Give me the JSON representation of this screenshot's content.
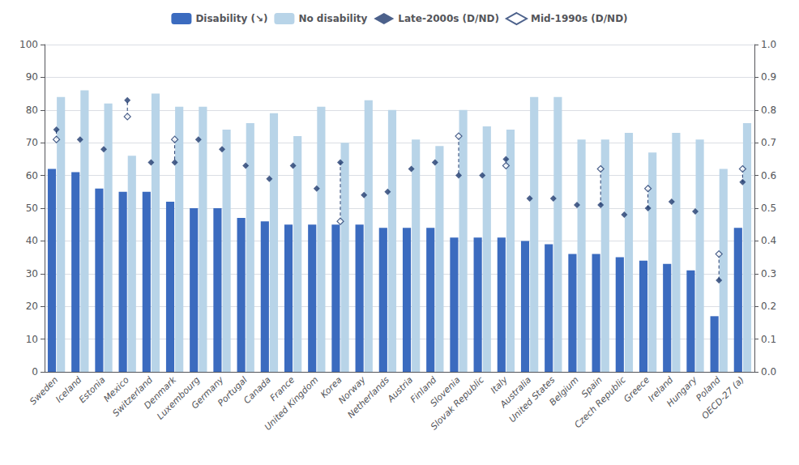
{
  "chart_data": {
    "type": "bar",
    "categories": [
      "Sweden",
      "Iceland",
      "Estonia",
      "Mexico",
      "Switzerland",
      "Denmark",
      "Luxembourg",
      "Germany",
      "Portugal",
      "Canada",
      "France",
      "United Kingdom",
      "Korea",
      "Norway",
      "Netherlands",
      "Austria",
      "Finland",
      "Slovenia",
      "Slovak Republic",
      "Italy",
      "Australia",
      "United States",
      "Belgium",
      "Spain",
      "Czech Republic",
      "Greece",
      "Ireland",
      "Hungary",
      "Poland",
      "OECD-27 (a)"
    ],
    "series": [
      {
        "name": "Disability (↘)",
        "type": "bar",
        "color": "#3b6bbf",
        "values": [
          62,
          61,
          56,
          55,
          55,
          52,
          50,
          50,
          47,
          46,
          45,
          45,
          45,
          45,
          44,
          44,
          44,
          41,
          41,
          41,
          40,
          39,
          36,
          36,
          35,
          34,
          33,
          31,
          17,
          44
        ]
      },
      {
        "name": "No disability",
        "type": "bar",
        "color": "#b8d4e8",
        "values": [
          84,
          86,
          82,
          66,
          85,
          81,
          81,
          74,
          76,
          79,
          72,
          81,
          70,
          83,
          80,
          71,
          69,
          80,
          75,
          74,
          84,
          84,
          71,
          71,
          73,
          67,
          73,
          71,
          62,
          76
        ]
      },
      {
        "name": "Late-2000s (D/ND)",
        "type": "scatter",
        "axis": "y2",
        "marker": "diamond",
        "color": "#1f3a6e",
        "values": [
          0.74,
          0.71,
          0.68,
          0.83,
          0.64,
          0.64,
          0.71,
          0.68,
          0.63,
          0.59,
          0.63,
          0.56,
          0.64,
          0.54,
          0.55,
          0.62,
          0.64,
          0.6,
          0.6,
          0.65,
          0.53,
          0.53,
          0.51,
          0.51,
          0.48,
          0.5,
          0.52,
          0.49,
          0.28,
          0.58
        ]
      },
      {
        "name": "Mid-1990s (D/ND)",
        "type": "scatter",
        "axis": "y2",
        "marker": "open_diamond",
        "line_style": "dashed",
        "color": "#1f3a6e",
        "values": [
          0.71,
          null,
          null,
          0.78,
          null,
          0.71,
          null,
          null,
          null,
          null,
          null,
          null,
          0.46,
          null,
          null,
          null,
          null,
          0.72,
          null,
          0.63,
          null,
          null,
          null,
          0.62,
          null,
          0.56,
          null,
          null,
          0.36,
          0.62
        ]
      }
    ],
    "ylim": [
      0,
      100
    ],
    "yticks": [
      0,
      10,
      20,
      30,
      40,
      50,
      60,
      70,
      80,
      90,
      100
    ],
    "y2lim": [
      0,
      1
    ],
    "y2ticks": [
      {
        "value": 0,
        "label": "0.0"
      },
      0.1,
      0.2,
      0.3,
      0.4,
      0.5,
      0.6,
      0.7,
      0.8,
      0.9,
      {
        "value": 1,
        "label": "1.0"
      }
    ],
    "grid": true,
    "legend": "top"
  }
}
